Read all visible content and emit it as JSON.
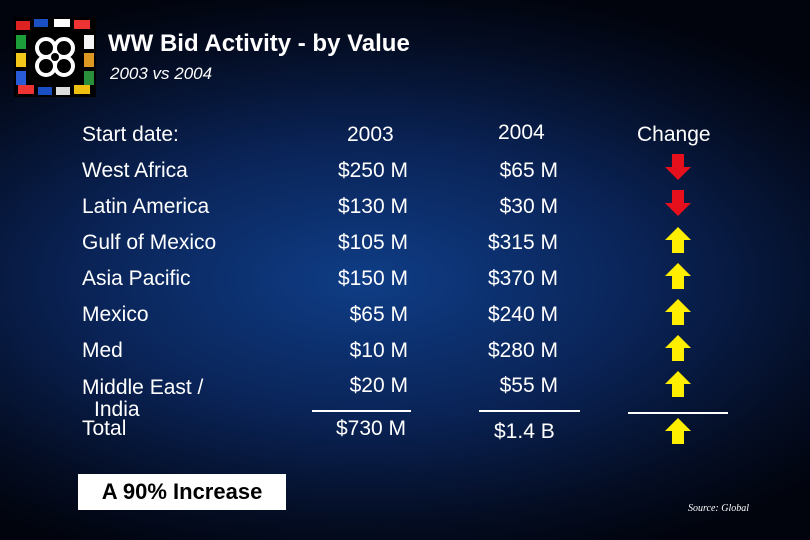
{
  "header": {
    "title": "WW Bid Activity - by Value",
    "subtitle": "2003 vs 2004"
  },
  "table": {
    "label_header": "Start date:",
    "col_2003_header": "2003",
    "col_2004_header": "2004",
    "change_header": "Change",
    "rows": [
      {
        "region": "West Africa",
        "v2003": "$250 M",
        "v2004": "$65 M",
        "change": "down"
      },
      {
        "region": "Latin America",
        "v2003": "$130 M",
        "v2004": "$30 M",
        "change": "down"
      },
      {
        "region": "Gulf of Mexico",
        "v2003": "$105 M",
        "v2004": "$315 M",
        "change": "up"
      },
      {
        "region": "Asia Pacific",
        "v2003": "$150 M",
        "v2004": "$370 M",
        "change": "up"
      },
      {
        "region": "Mexico",
        "v2003": "$65 M",
        "v2004": "$240 M",
        "change": "up"
      },
      {
        "region": "Med",
        "v2003": "$10 M",
        "v2004": "$280 M",
        "change": "up"
      },
      {
        "region": "Middle East /",
        "region_line2": "India",
        "v2003": "$20 M",
        "v2004": "$55 M",
        "change": "up"
      }
    ],
    "total_label": "Total",
    "total_2003": "$730 M",
    "total_2004": "$1.4 B",
    "total_change": "up"
  },
  "banner": "A 90% Increase",
  "source": "Source: Global",
  "colors": {
    "down": "#e5101c",
    "up": "#ffee00",
    "background": "#0a2458"
  },
  "icons": {
    "down": "red-down-arrow-icon",
    "up": "yellow-up-arrow-icon"
  }
}
